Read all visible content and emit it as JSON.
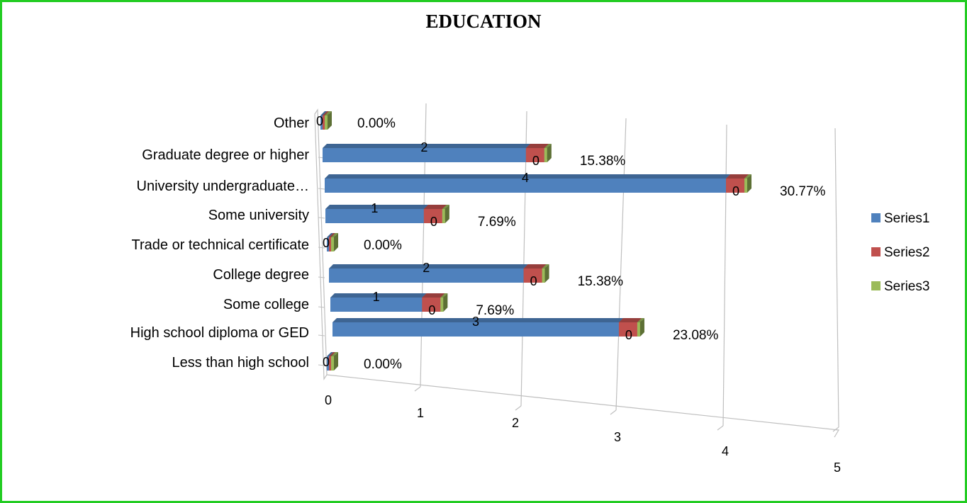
{
  "chart_data": {
    "type": "bar",
    "orientation": "horizontal",
    "style": "3d",
    "title": "EDUCATION",
    "categories": [
      "Less than high school",
      "High school diploma or GED",
      "Some college",
      "College degree",
      "Trade or technical certificate",
      "Some university",
      "University undergraduate…",
      "Graduate degree or higher",
      "Other"
    ],
    "series": [
      {
        "name": "Series1",
        "values": [
          0,
          3,
          1,
          2,
          0,
          1,
          4,
          2,
          0
        ],
        "color": "#4f81bd"
      },
      {
        "name": "Series2",
        "values": [
          0,
          0,
          0,
          0,
          0,
          0,
          0,
          0,
          0
        ],
        "color": "#c0504d"
      },
      {
        "name": "Series3",
        "values": [
          0,
          0,
          0,
          0,
          0,
          0,
          0,
          0,
          0
        ],
        "color": "#9bbb59"
      }
    ],
    "percent_labels": [
      "0.00%",
      "23.08%",
      "7.69%",
      "15.38%",
      "0.00%",
      "7.69%",
      "30.77%",
      "15.38%",
      "0.00%"
    ],
    "x_ticks": [
      "0",
      "1",
      "2",
      "3",
      "4",
      "5"
    ],
    "xlim": [
      0,
      5
    ],
    "grid": true,
    "legend": "right"
  }
}
